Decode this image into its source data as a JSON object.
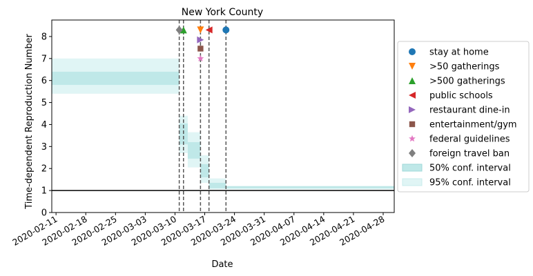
{
  "chart_data": {
    "type": "line",
    "title": "New York County",
    "xlabel": "Date",
    "ylabel": "Time-dependent Reproduction Number",
    "x_ticks": [
      "2020-02-11",
      "2020-02-18",
      "2020-02-25",
      "2020-03-03",
      "2020-03-10",
      "2020-03-17",
      "2020-03-24",
      "2020-03-31",
      "2020-04-07",
      "2020-04-14",
      "2020-04-21",
      "2020-04-28"
    ],
    "x_tick_offsets_days": [
      0,
      7,
      14,
      21,
      28,
      35,
      42,
      49,
      56,
      63,
      70,
      77
    ],
    "xlim_days": [
      -1,
      79.6
    ],
    "y_ticks": [
      "0",
      "1",
      "2",
      "3",
      "4",
      "5",
      "6",
      "7",
      "8"
    ],
    "ylim": [
      0,
      8.75
    ],
    "reference_line": 1,
    "ci95": [
      {
        "start": "2020-02-10",
        "end": "2020-03-11",
        "lo": 5.4,
        "hi": 7.0
      },
      {
        "start": "2020-03-11",
        "end": "2020-03-13",
        "lo": 2.7,
        "hi": 4.4
      },
      {
        "start": "2020-03-13",
        "end": "2020-03-16",
        "lo": 2.05,
        "hi": 3.65
      },
      {
        "start": "2020-03-16",
        "end": "2020-03-18",
        "lo": 1.35,
        "hi": 2.6
      },
      {
        "start": "2020-03-18",
        "end": "2020-03-22",
        "lo": 1.05,
        "hi": 1.55
      },
      {
        "start": "2020-03-22",
        "end": "2020-05-01",
        "lo": 1.05,
        "hi": 1.2
      }
    ],
    "ci50": [
      {
        "start": "2020-02-10",
        "end": "2020-03-11",
        "lo": 5.8,
        "hi": 6.4
      },
      {
        "start": "2020-03-11",
        "end": "2020-03-13",
        "lo": 3.1,
        "hi": 4.05
      },
      {
        "start": "2020-03-13",
        "end": "2020-03-16",
        "lo": 2.45,
        "hi": 3.2
      },
      {
        "start": "2020-03-16",
        "end": "2020-03-18",
        "lo": 1.6,
        "hi": 2.2
      },
      {
        "start": "2020-03-18",
        "end": "2020-03-22",
        "lo": 1.1,
        "hi": 1.35
      },
      {
        "start": "2020-03-22",
        "end": "2020-05-01",
        "lo": 1.1,
        "hi": 1.2
      }
    ],
    "interventions": [
      {
        "name": "stay at home",
        "date": "2020-03-22",
        "y": 8.3,
        "marker": "circle",
        "color": "#1f77b4"
      },
      {
        "name": ">50 gatherings",
        "date": "2020-03-16",
        "y": 8.3,
        "marker": "triangle-down",
        "color": "#ff7f0e"
      },
      {
        "name": ">500 gatherings",
        "date": "2020-03-12",
        "y": 8.3,
        "marker": "triangle-up",
        "color": "#2ca02c"
      },
      {
        "name": "public schools",
        "date": "2020-03-18",
        "y": 8.3,
        "marker": "triangle-left",
        "color": "#d62728"
      },
      {
        "name": "restaurant dine-in",
        "date": "2020-03-16",
        "y": 7.85,
        "marker": "triangle-right",
        "color": "#9467bd"
      },
      {
        "name": "entertainment/gym",
        "date": "2020-03-16",
        "y": 7.45,
        "marker": "square",
        "color": "#8c564b"
      },
      {
        "name": "federal guidelines",
        "date": "2020-03-16",
        "y": 7.0,
        "marker": "star",
        "color": "#e377c2"
      },
      {
        "name": "foreign travel ban",
        "date": "2020-03-11",
        "y": 8.3,
        "marker": "diamond",
        "color": "#7f7f7f"
      }
    ],
    "intervention_lines": [
      "2020-03-11",
      "2020-03-12",
      "2020-03-16",
      "2020-03-18",
      "2020-03-22"
    ],
    "legend": {
      "placement": "right-outside",
      "ci50_label": "50% conf. interval",
      "ci95_label": "95% conf. interval"
    },
    "colors": {
      "ci50": "#bfe8e8",
      "ci95": "#e0f5f5",
      "ci_edge": "#9fd8d8",
      "reference": "#000000",
      "vline": "#555555"
    }
  }
}
